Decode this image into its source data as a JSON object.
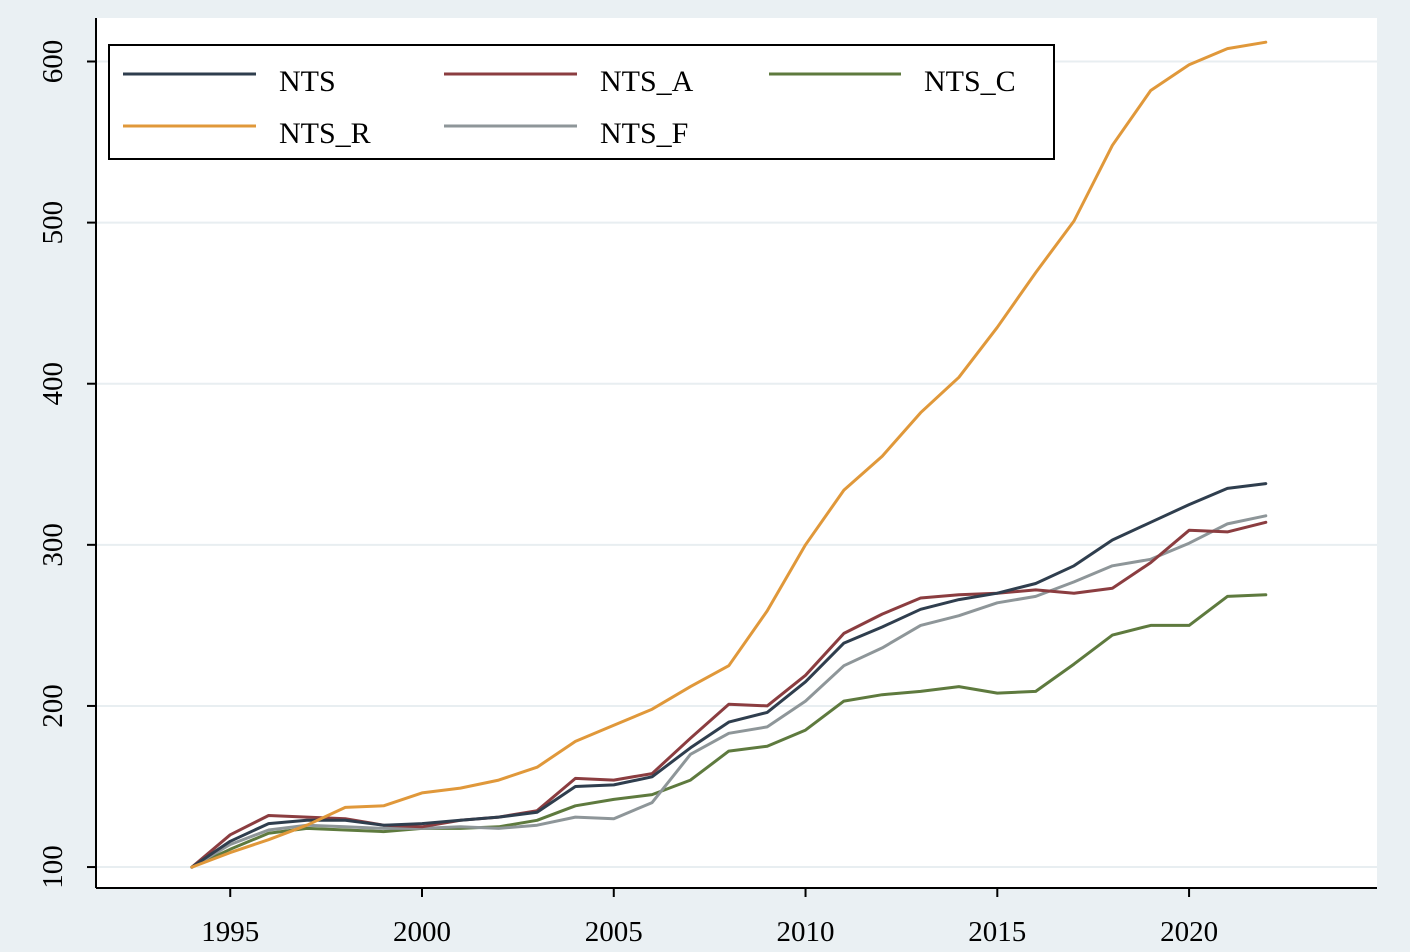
{
  "chart_data": {
    "type": "line",
    "title": "",
    "xlabel": "",
    "ylabel": "",
    "x": [
      1994,
      1995,
      1996,
      1997,
      1998,
      1999,
      2000,
      2001,
      2002,
      2003,
      2004,
      2005,
      2006,
      2007,
      2008,
      2009,
      2010,
      2011,
      2012,
      2013,
      2014,
      2015,
      2016,
      2017,
      2018,
      2019,
      2020,
      2021,
      2022
    ],
    "xlim": [
      1991.5,
      2024.9
    ],
    "ylim": [
      87,
      627
    ],
    "xticks": [
      1995,
      2000,
      2005,
      2010,
      2015,
      2020
    ],
    "yticks": [
      100,
      200,
      300,
      400,
      500,
      600
    ],
    "grid": true,
    "legend": {
      "placement": "top-left",
      "columns": 3
    },
    "series": [
      {
        "name": "NTS",
        "color": "#2f3e4e",
        "values": [
          100,
          116,
          127,
          129,
          129,
          126,
          127,
          129,
          131,
          134,
          150,
          151,
          156,
          174,
          190,
          196,
          215,
          239,
          249,
          260,
          266,
          270,
          276,
          287,
          303,
          314,
          325,
          335,
          338
        ]
      },
      {
        "name": "NTS_A",
        "color": "#8b3d40",
        "values": [
          100,
          120,
          132,
          131,
          130,
          126,
          125,
          129,
          131,
          135,
          155,
          154,
          158,
          180,
          201,
          200,
          219,
          245,
          257,
          267,
          269,
          270,
          272,
          270,
          273,
          289,
          309,
          308,
          314
        ]
      },
      {
        "name": "NTS_C",
        "color": "#5e7a3e",
        "values": [
          100,
          111,
          121,
          124,
          123,
          122,
          124,
          124,
          125,
          129,
          138,
          142,
          145,
          154,
          172,
          175,
          185,
          203,
          207,
          209,
          212,
          208,
          209,
          226,
          244,
          250,
          250,
          268,
          269
        ]
      },
      {
        "name": "NTS_R",
        "color": "#e0983a",
        "values": [
          100,
          109,
          117,
          126,
          137,
          138,
          146,
          149,
          154,
          162,
          178,
          188,
          198,
          212,
          225,
          259,
          300,
          334,
          355,
          382,
          404,
          435,
          469,
          501,
          548,
          582,
          598,
          608,
          612
        ]
      },
      {
        "name": "NTS_F",
        "color": "#8e9699",
        "values": [
          100,
          114,
          123,
          126,
          125,
          124,
          124,
          125,
          124,
          126,
          131,
          130,
          140,
          170,
          183,
          187,
          203,
          225,
          236,
          250,
          256,
          264,
          268,
          277,
          287,
          291,
          301,
          313,
          318
        ]
      }
    ]
  }
}
